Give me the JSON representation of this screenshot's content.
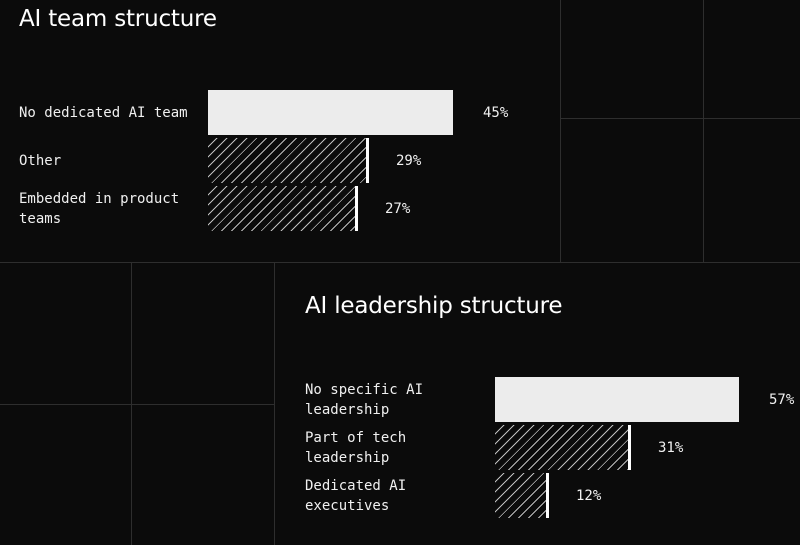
{
  "chart_data": [
    {
      "type": "bar",
      "orientation": "horizontal",
      "title": "AI team structure",
      "categories": [
        "No dedicated AI team",
        "Other",
        "Embedded in product teams"
      ],
      "category_lines": [
        [
          "No dedicated AI team"
        ],
        [
          "Other"
        ],
        [
          "Embedded in product",
          "teams"
        ]
      ],
      "values": [
        45,
        29,
        27
      ],
      "value_labels": [
        "45%",
        "29%",
        "27%"
      ],
      "unit": "%",
      "grid": false,
      "legend": "none"
    },
    {
      "type": "bar",
      "orientation": "horizontal",
      "title": "AI leadership structure",
      "categories": [
        "No specific AI leadership",
        "Part of tech leadership",
        "Dedicated AI executives"
      ],
      "category_lines": [
        [
          "No specific AI",
          "leadership"
        ],
        [
          "Part of tech",
          "leadership"
        ],
        [
          "Dedicated AI",
          "executives"
        ]
      ],
      "values": [
        57,
        31,
        12
      ],
      "value_labels": [
        "57%",
        "31%",
        "12%"
      ],
      "unit": "%",
      "grid": false,
      "legend": "none"
    }
  ],
  "colors": {
    "background": "#0b0b0b",
    "text": "#ffffff",
    "top_bar_fill": "#ececec",
    "hatch": "#bdbdbd",
    "grid": "#2e2e2e"
  }
}
